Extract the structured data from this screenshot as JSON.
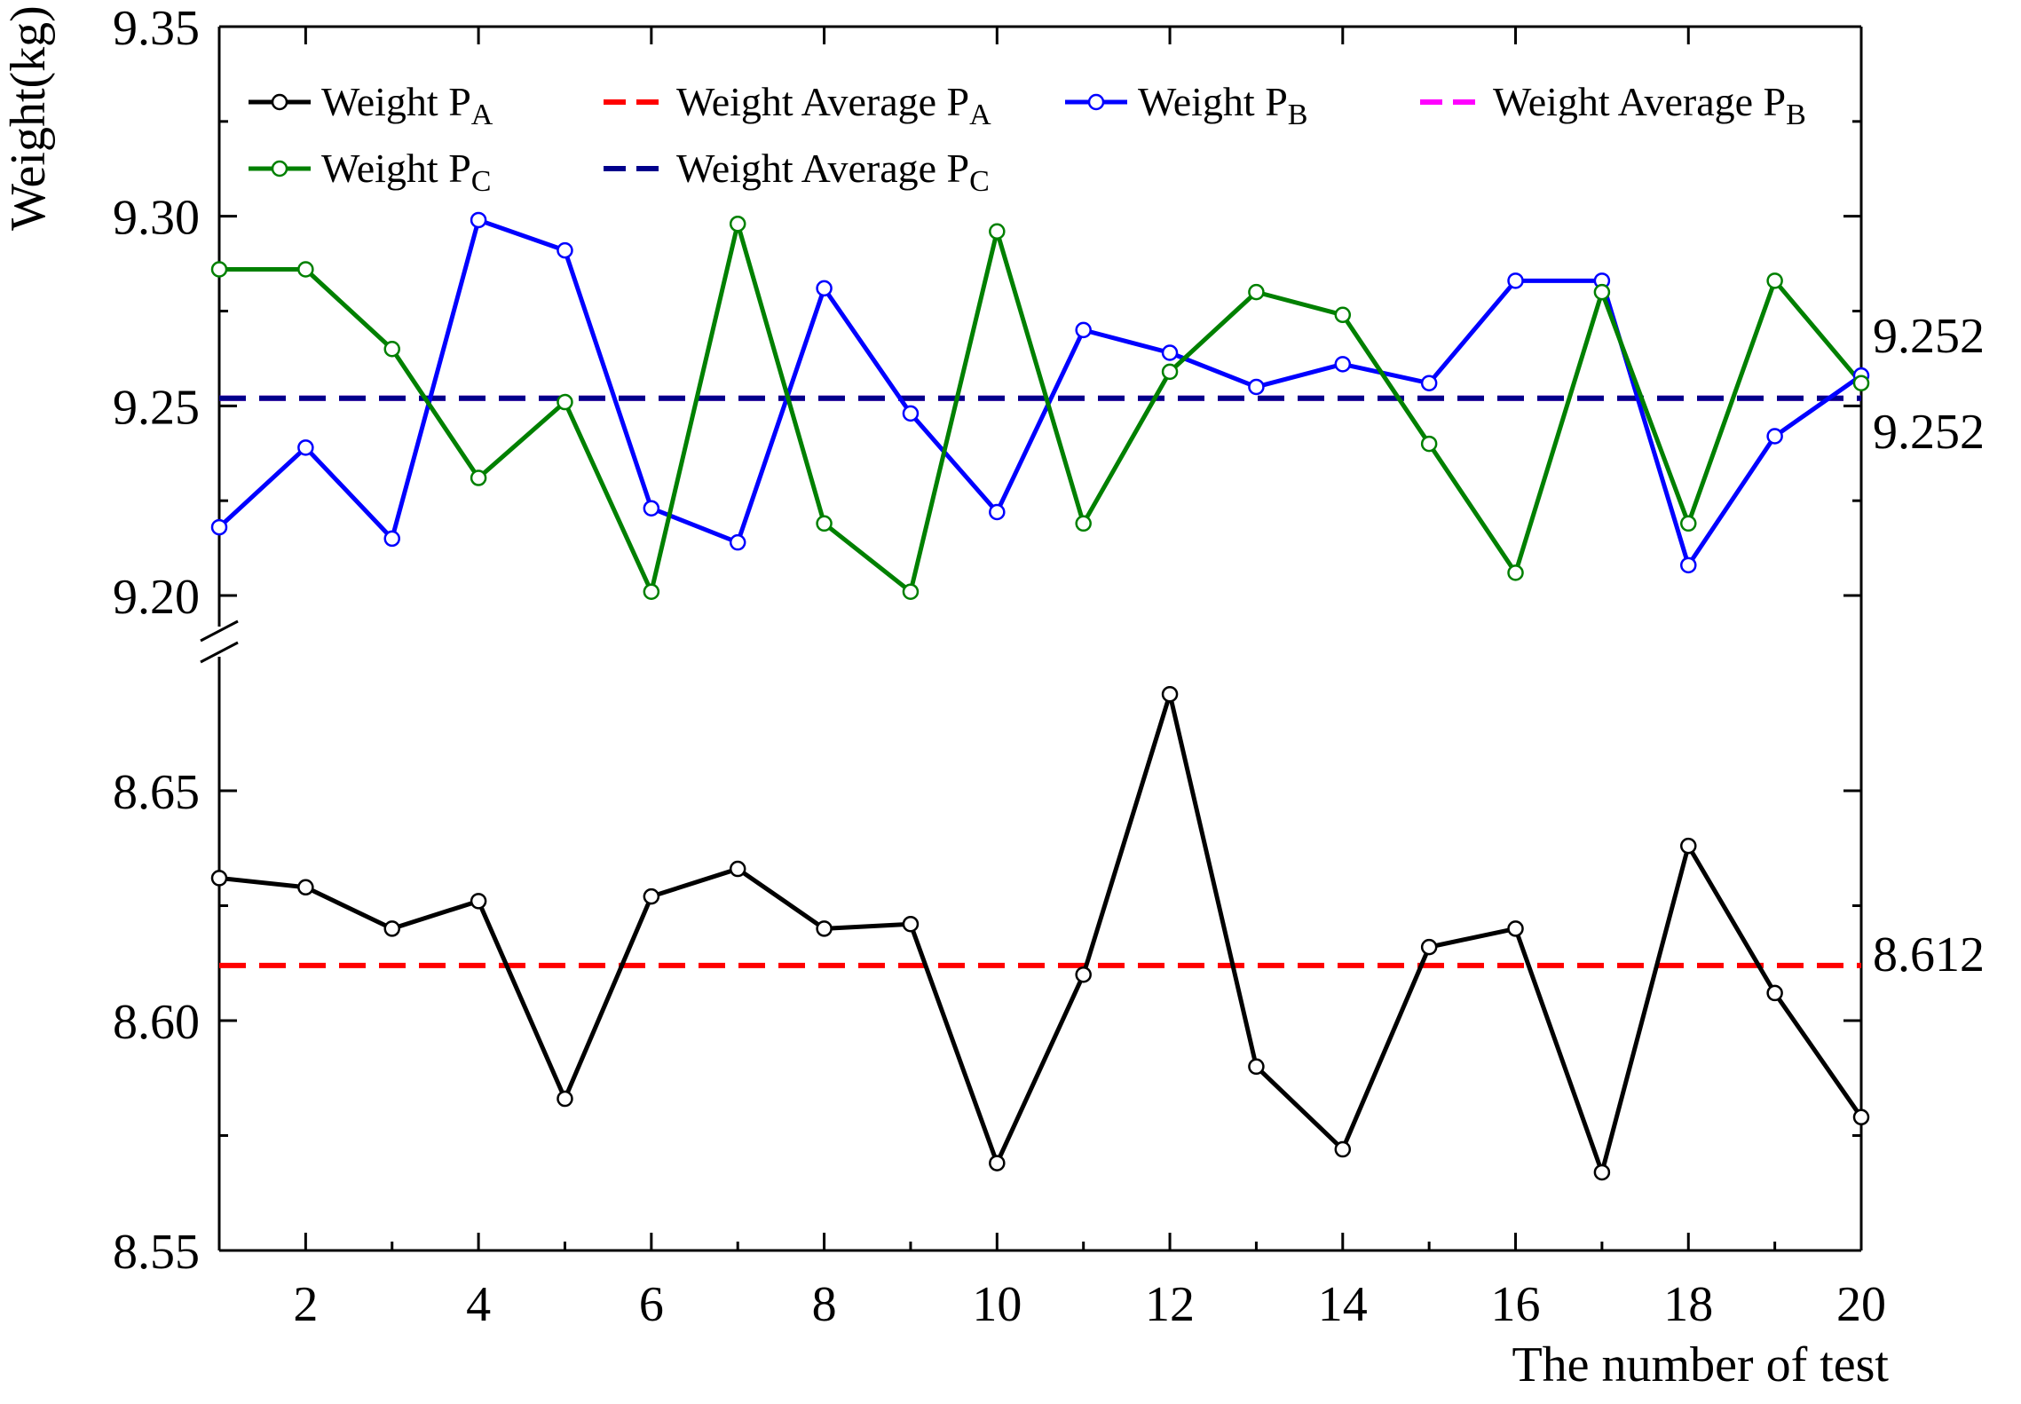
{
  "chart_data": {
    "type": "line",
    "xlabel": "The number of test",
    "ylabel": "Weight(kg)",
    "xlim": [
      1,
      20
    ],
    "x_ticks": [
      "2",
      "4",
      "6",
      "8",
      "10",
      "12",
      "14",
      "16",
      "18",
      "20"
    ],
    "axis_break": true,
    "upper_ylim": [
      9.185,
      9.35
    ],
    "lower_ylim": [
      8.55,
      8.68
    ],
    "upper_yticks": [
      "9.20",
      "9.25",
      "9.30",
      "9.35"
    ],
    "lower_yticks": [
      "8.55",
      "8.60",
      "8.65"
    ],
    "x": [
      1,
      2,
      3,
      4,
      5,
      6,
      7,
      8,
      9,
      10,
      11,
      12,
      13,
      14,
      15,
      16,
      17,
      18,
      19,
      20
    ],
    "series": [
      {
        "name": "Weight P_A",
        "label": "Weight P",
        "sub": "A",
        "color": "#000000",
        "style": "solid-marker",
        "panel": "lower",
        "values": [
          8.631,
          8.629,
          8.62,
          8.626,
          8.583,
          8.627,
          8.633,
          8.62,
          8.621,
          8.569,
          8.61,
          8.671,
          8.59,
          8.572,
          8.616,
          8.62,
          8.567,
          8.638,
          8.606,
          8.579
        ]
      },
      {
        "name": "Weight Average P_A",
        "label": "Weight Average P",
        "sub": "A",
        "color": "#ff0000",
        "style": "dashed",
        "panel": "lower",
        "value": 8.612
      },
      {
        "name": "Weight P_B",
        "label": "Weight P",
        "sub": "B",
        "color": "#0000ff",
        "style": "solid-marker",
        "panel": "upper",
        "values": [
          9.218,
          9.239,
          9.215,
          9.299,
          9.291,
          9.223,
          9.214,
          9.281,
          9.248,
          9.222,
          9.27,
          9.264,
          9.255,
          9.261,
          9.256,
          9.283,
          9.283,
          9.208,
          9.242,
          9.258
        ]
      },
      {
        "name": "Weight Average P_B",
        "label": "Weight Average P",
        "sub": "B",
        "color": "#ff00ff",
        "style": "dashed",
        "panel": "upper",
        "value": 9.252
      },
      {
        "name": "Weight P_C",
        "label": "Weight P",
        "sub": "C",
        "color": "#008000",
        "style": "solid-marker",
        "panel": "upper",
        "values": [
          9.286,
          9.286,
          9.265,
          9.231,
          9.251,
          9.201,
          9.298,
          9.219,
          9.201,
          9.296,
          9.219,
          9.259,
          9.28,
          9.274,
          9.24,
          9.206,
          9.28,
          9.219,
          9.283,
          9.256
        ]
      },
      {
        "name": "Weight Average P_C",
        "label": "Weight Average P",
        "sub": "C",
        "color": "#00008b",
        "style": "dashed",
        "panel": "upper",
        "value": 9.252
      }
    ],
    "annotations": [
      "9.252",
      "9.252",
      "8.612"
    ],
    "legend_position": "top"
  }
}
